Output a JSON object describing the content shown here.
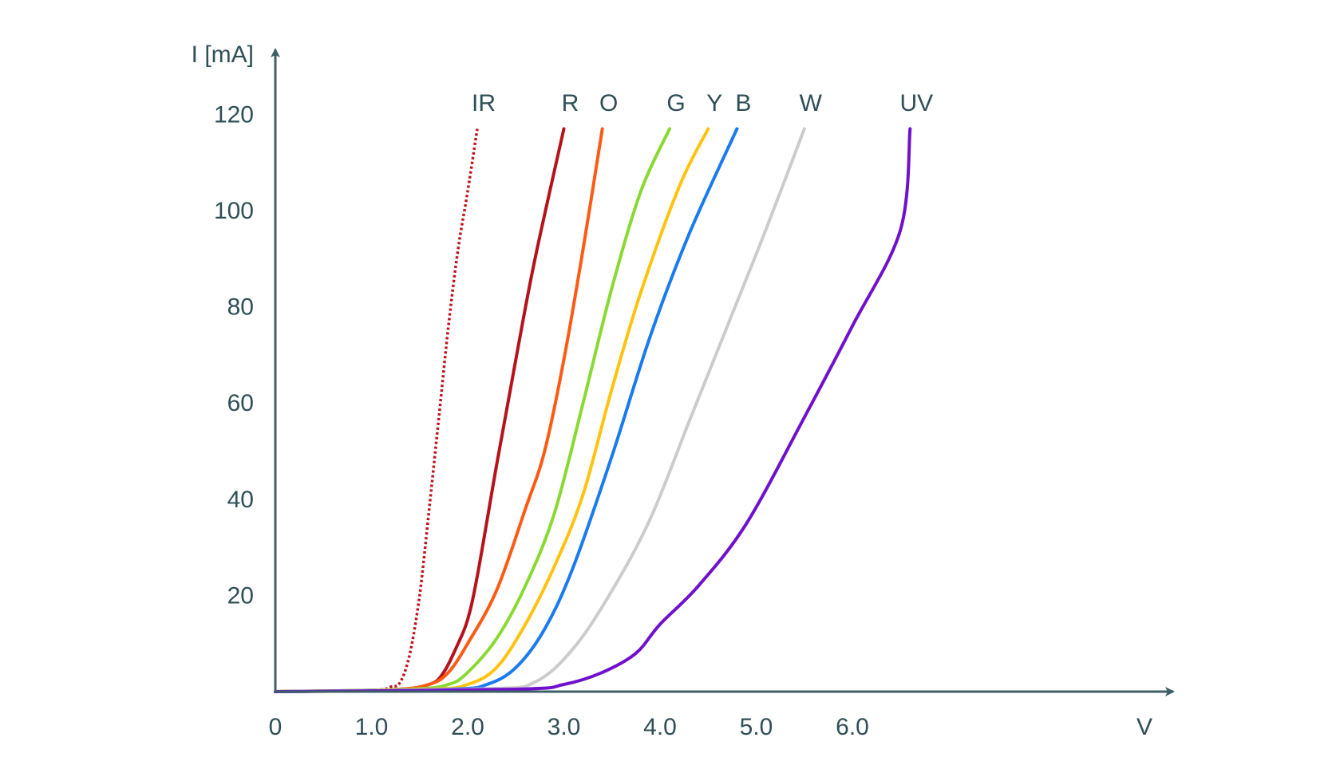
{
  "chart_data": {
    "type": "line",
    "title": "",
    "xlabel": "V",
    "ylabel": "I [mA]",
    "xlim": [
      0,
      9
    ],
    "ylim": [
      0,
      120
    ],
    "x_ticks": [
      0,
      1,
      2,
      3,
      4,
      5,
      6
    ],
    "x_tick_labels": [
      "0",
      "1.0",
      "2.0",
      "3.0",
      "4.0",
      "5.0",
      "6.0"
    ],
    "y_ticks": [
      20,
      40,
      60,
      80,
      100,
      120
    ],
    "y_tick_labels": [
      "20",
      "40",
      "60",
      "80",
      "100",
      "120"
    ],
    "grid": false,
    "axis_color": "#3d5f66",
    "series": [
      {
        "name": "IR",
        "color": "#c0101a",
        "dashed": true,
        "points": [
          [
            0,
            0
          ],
          [
            1.0,
            0.3
          ],
          [
            1.2,
            1
          ],
          [
            1.3,
            2
          ],
          [
            1.4,
            8
          ],
          [
            1.5,
            20
          ],
          [
            1.6,
            38
          ],
          [
            1.7,
            57
          ],
          [
            1.8,
            76
          ],
          [
            1.9,
            92
          ],
          [
            2.0,
            104
          ],
          [
            2.1,
            117
          ]
        ]
      },
      {
        "name": "R",
        "color": "#b5121b",
        "dashed": false,
        "points": [
          [
            0,
            0
          ],
          [
            1.2,
            0.4
          ],
          [
            1.6,
            1.5
          ],
          [
            1.75,
            4
          ],
          [
            1.9,
            10
          ],
          [
            2.0,
            15
          ],
          [
            2.1,
            24
          ],
          [
            2.3,
            47
          ],
          [
            2.5,
            69
          ],
          [
            2.7,
            90
          ],
          [
            3.0,
            117
          ]
        ]
      },
      {
        "name": "O",
        "color": "#ff5a14",
        "dashed": false,
        "points": [
          [
            0,
            0
          ],
          [
            1.2,
            0.4
          ],
          [
            1.6,
            1.5
          ],
          [
            1.8,
            4
          ],
          [
            2.0,
            10
          ],
          [
            2.3,
            21
          ],
          [
            2.6,
            38
          ],
          [
            2.8,
            50
          ],
          [
            3.0,
            69
          ],
          [
            3.2,
            92
          ],
          [
            3.4,
            117
          ]
        ]
      },
      {
        "name": "G",
        "color": "#8ad932",
        "dashed": false,
        "points": [
          [
            0,
            0
          ],
          [
            1.4,
            0.5
          ],
          [
            1.8,
            1.5
          ],
          [
            2.0,
            4
          ],
          [
            2.3,
            11
          ],
          [
            2.6,
            22
          ],
          [
            2.9,
            37
          ],
          [
            3.2,
            60
          ],
          [
            3.5,
            84
          ],
          [
            3.8,
            104
          ],
          [
            4.1,
            117
          ]
        ]
      },
      {
        "name": "Y",
        "color": "#ffc30d",
        "dashed": false,
        "points": [
          [
            0,
            0
          ],
          [
            1.6,
            0.5
          ],
          [
            2.0,
            1.5
          ],
          [
            2.3,
            5
          ],
          [
            2.6,
            14
          ],
          [
            2.9,
            26
          ],
          [
            3.2,
            41
          ],
          [
            3.5,
            63
          ],
          [
            3.8,
            83
          ],
          [
            4.2,
            105
          ],
          [
            4.5,
            117
          ]
        ]
      },
      {
        "name": "B",
        "color": "#1a7af0",
        "dashed": false,
        "points": [
          [
            0,
            0
          ],
          [
            1.8,
            0.5
          ],
          [
            2.2,
            1.5
          ],
          [
            2.5,
            5
          ],
          [
            2.8,
            13
          ],
          [
            3.1,
            26
          ],
          [
            3.5,
            49
          ],
          [
            3.9,
            74
          ],
          [
            4.3,
            95
          ],
          [
            4.8,
            117
          ]
        ]
      },
      {
        "name": "W",
        "color": "#cccccc",
        "dashed": false,
        "points": [
          [
            0,
            0
          ],
          [
            2.2,
            0.6
          ],
          [
            2.7,
            2
          ],
          [
            3.1,
            9
          ],
          [
            3.5,
            21
          ],
          [
            3.9,
            36
          ],
          [
            4.3,
            56
          ],
          [
            4.7,
            76
          ],
          [
            5.1,
            96
          ],
          [
            5.5,
            117
          ]
        ]
      },
      {
        "name": "UV",
        "color": "#7010cc",
        "dashed": false,
        "points": [
          [
            0,
            0
          ],
          [
            2.5,
            0.5
          ],
          [
            3.0,
            1.5
          ],
          [
            3.4,
            4
          ],
          [
            3.75,
            8
          ],
          [
            4.0,
            14
          ],
          [
            4.4,
            22
          ],
          [
            4.9,
            35
          ],
          [
            5.5,
            57
          ],
          [
            6.0,
            76
          ],
          [
            6.5,
            96
          ],
          [
            6.6,
            117
          ]
        ]
      }
    ],
    "series_label_positions": "above-line-ends"
  }
}
